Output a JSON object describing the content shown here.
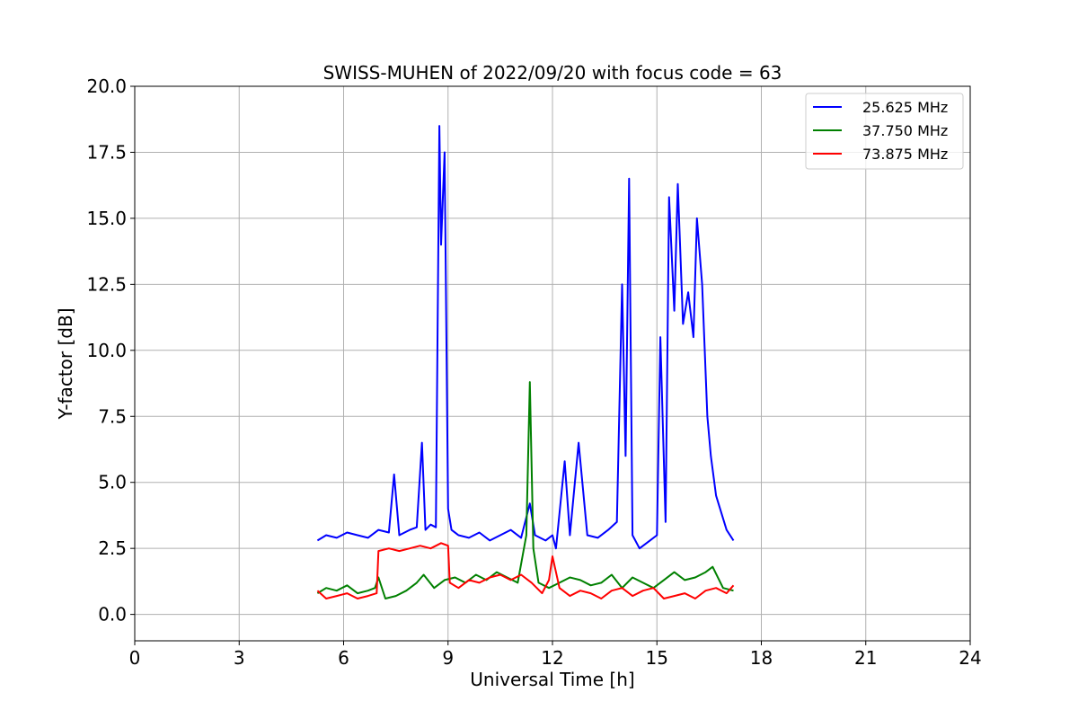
{
  "chart_data": {
    "type": "line",
    "title": "SWISS-MUHEN of 2022/09/20 with focus code = 63",
    "xlabel": "Universal Time [h]",
    "ylabel": "Y-factor [dB]",
    "xlim": [
      0,
      24
    ],
    "ylim": [
      -1.0,
      20.0
    ],
    "x_ticks": [
      0,
      3,
      6,
      9,
      12,
      15,
      18,
      21,
      24
    ],
    "x_tick_labels": [
      "0",
      "3",
      "6",
      "9",
      "12",
      "15",
      "18",
      "21",
      "24"
    ],
    "y_ticks": [
      0.0,
      2.5,
      5.0,
      7.5,
      10.0,
      12.5,
      15.0,
      17.5,
      20.0
    ],
    "y_tick_labels": [
      "0.0",
      "2.5",
      "5.0",
      "7.5",
      "10.0",
      "12.5",
      "15.0",
      "17.5",
      "20.0"
    ],
    "grid": true,
    "legend_position": "top-right",
    "series": [
      {
        "name": "25.625 MHz",
        "color": "#0000ff",
        "x": [
          5.25,
          5.5,
          5.8,
          6.1,
          6.4,
          6.7,
          7.0,
          7.3,
          7.45,
          7.6,
          7.9,
          8.1,
          8.25,
          8.35,
          8.5,
          8.65,
          8.75,
          8.8,
          8.9,
          9.0,
          9.1,
          9.3,
          9.6,
          9.9,
          10.2,
          10.5,
          10.8,
          11.1,
          11.35,
          11.5,
          11.8,
          12.0,
          12.1,
          12.35,
          12.5,
          12.75,
          13.0,
          13.3,
          13.6,
          13.85,
          14.0,
          14.1,
          14.2,
          14.3,
          14.5,
          14.8,
          15.0,
          15.1,
          15.25,
          15.35,
          15.5,
          15.6,
          15.75,
          15.9,
          16.05,
          16.15,
          16.3,
          16.45,
          16.55,
          16.7,
          17.0,
          17.2
        ],
        "y": [
          2.8,
          3.0,
          2.9,
          3.1,
          3.0,
          2.9,
          3.2,
          3.1,
          5.3,
          3.0,
          3.2,
          3.3,
          6.5,
          3.2,
          3.4,
          3.3,
          18.5,
          14.0,
          17.5,
          4.0,
          3.2,
          3.0,
          2.9,
          3.1,
          2.8,
          3.0,
          3.2,
          2.9,
          4.2,
          3.0,
          2.8,
          3.0,
          2.5,
          5.8,
          3.0,
          6.5,
          3.0,
          2.9,
          3.2,
          3.5,
          12.5,
          6.0,
          16.5,
          3.0,
          2.5,
          2.8,
          3.0,
          10.5,
          3.5,
          15.8,
          11.5,
          16.3,
          11.0,
          12.2,
          10.5,
          15.0,
          12.5,
          7.5,
          6.0,
          4.5,
          3.2,
          2.8
        ]
      },
      {
        "name": "37.750 MHz",
        "color": "#008000",
        "x": [
          5.25,
          5.5,
          5.8,
          6.1,
          6.4,
          6.7,
          6.9,
          7.0,
          7.2,
          7.5,
          7.8,
          8.1,
          8.3,
          8.6,
          8.9,
          9.2,
          9.5,
          9.8,
          10.1,
          10.4,
          10.7,
          11.0,
          11.25,
          11.35,
          11.45,
          11.6,
          11.9,
          12.2,
          12.5,
          12.8,
          13.1,
          13.4,
          13.7,
          14.0,
          14.3,
          14.6,
          14.9,
          15.2,
          15.5,
          15.8,
          16.1,
          16.4,
          16.6,
          16.9,
          17.2
        ],
        "y": [
          0.8,
          1.0,
          0.9,
          1.1,
          0.8,
          0.9,
          1.0,
          1.4,
          0.6,
          0.7,
          0.9,
          1.2,
          1.5,
          1.0,
          1.3,
          1.4,
          1.2,
          1.5,
          1.3,
          1.6,
          1.4,
          1.2,
          3.0,
          8.8,
          2.5,
          1.2,
          1.0,
          1.2,
          1.4,
          1.3,
          1.1,
          1.2,
          1.5,
          1.0,
          1.4,
          1.2,
          1.0,
          1.3,
          1.6,
          1.3,
          1.4,
          1.6,
          1.8,
          1.0,
          0.9
        ]
      },
      {
        "name": "73.875 MHz",
        "color": "#ff0000",
        "x": [
          5.25,
          5.5,
          5.8,
          6.1,
          6.4,
          6.7,
          6.95,
          7.0,
          7.3,
          7.6,
          7.9,
          8.2,
          8.5,
          8.8,
          9.0,
          9.05,
          9.3,
          9.6,
          9.9,
          10.2,
          10.5,
          10.8,
          11.1,
          11.4,
          11.7,
          11.9,
          12.0,
          12.2,
          12.5,
          12.8,
          13.1,
          13.4,
          13.7,
          14.0,
          14.3,
          14.6,
          14.9,
          15.2,
          15.5,
          15.8,
          16.1,
          16.4,
          16.7,
          17.0,
          17.2
        ],
        "y": [
          0.9,
          0.6,
          0.7,
          0.8,
          0.6,
          0.7,
          0.8,
          2.4,
          2.5,
          2.4,
          2.5,
          2.6,
          2.5,
          2.7,
          2.6,
          1.2,
          1.0,
          1.3,
          1.2,
          1.4,
          1.5,
          1.3,
          1.5,
          1.2,
          0.8,
          1.3,
          2.2,
          1.0,
          0.7,
          0.9,
          0.8,
          0.6,
          0.9,
          1.0,
          0.7,
          0.9,
          1.0,
          0.6,
          0.7,
          0.8,
          0.6,
          0.9,
          1.0,
          0.8,
          1.1
        ]
      }
    ]
  }
}
